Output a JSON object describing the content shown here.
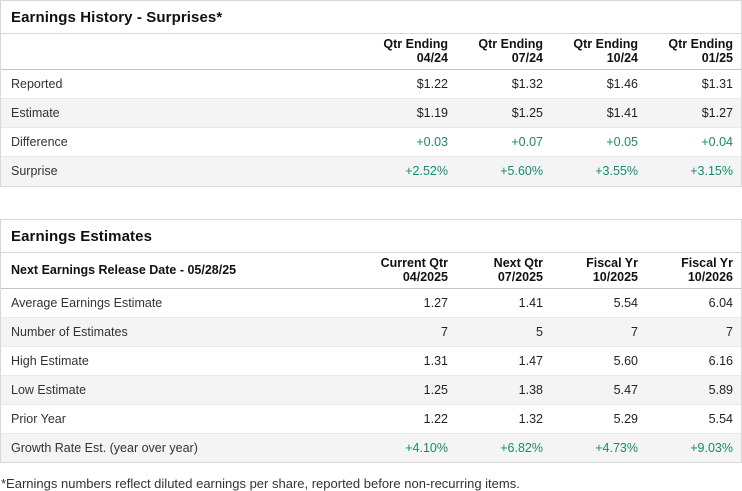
{
  "colors": {
    "accent_green": "#148a72",
    "stripe_bg": "#f4f4f4",
    "border_outer": "#d8d8d8",
    "border_header": "#c4c4c4",
    "border_row": "#e9e9e9",
    "text_dark": "#111111",
    "text_label": "#333333"
  },
  "earnings_history": {
    "title": "Earnings History - Surprises*",
    "columns": [
      {
        "line1": "Qtr Ending",
        "line2": "04/24"
      },
      {
        "line1": "Qtr Ending",
        "line2": "07/24"
      },
      {
        "line1": "Qtr Ending",
        "line2": "10/24"
      },
      {
        "line1": "Qtr Ending",
        "line2": "01/25"
      }
    ],
    "rows": [
      {
        "label": "Reported",
        "values": [
          "$1.22",
          "$1.32",
          "$1.46",
          "$1.31"
        ]
      },
      {
        "label": "Estimate",
        "values": [
          "$1.19",
          "$1.25",
          "$1.41",
          "$1.27"
        ]
      },
      {
        "label": "Difference",
        "values": [
          "+0.03",
          "+0.07",
          "+0.05",
          "+0.04"
        ]
      },
      {
        "label": "Surprise",
        "values": [
          "+2.52%",
          "+5.60%",
          "+3.55%",
          "+3.15%"
        ]
      }
    ]
  },
  "earnings_estimates": {
    "title": "Earnings Estimates",
    "header_label": "Next Earnings Release Date - 05/28/25",
    "columns": [
      {
        "line1": "Current Qtr",
        "line2": "04/2025"
      },
      {
        "line1": "Next Qtr",
        "line2": "07/2025"
      },
      {
        "line1": "Fiscal Yr",
        "line2": "10/2025"
      },
      {
        "line1": "Fiscal Yr",
        "line2": "10/2026"
      }
    ],
    "rows": [
      {
        "label": "Average Earnings Estimate",
        "values": [
          "1.27",
          "1.41",
          "5.54",
          "6.04"
        ]
      },
      {
        "label": "Number of Estimates",
        "values": [
          "7",
          "5",
          "7",
          "7"
        ]
      },
      {
        "label": "High Estimate",
        "values": [
          "1.31",
          "1.47",
          "5.60",
          "6.16"
        ]
      },
      {
        "label": "Low Estimate",
        "values": [
          "1.25",
          "1.38",
          "5.47",
          "5.89"
        ]
      },
      {
        "label": "Prior Year",
        "values": [
          "1.22",
          "1.32",
          "5.29",
          "5.54"
        ]
      },
      {
        "label": "Growth Rate Est. (year over year)",
        "values": [
          "+4.10%",
          "+6.82%",
          "+4.73%",
          "+9.03%"
        ]
      }
    ]
  },
  "footnote": "*Earnings numbers reflect diluted earnings per share, reported before non-recurring items."
}
